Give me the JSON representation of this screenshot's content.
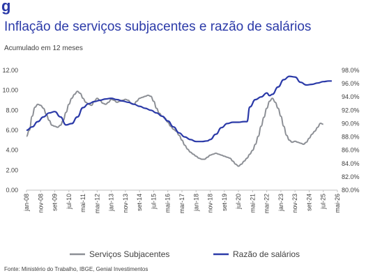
{
  "brand": {
    "logo_mark": "g",
    "accent": "#2b3aa8"
  },
  "title": "Inflação de serviços subjacentes e razão de salários",
  "subtitle": "Acumulado em 12 meses",
  "source": "Fonte: Ministério do Trabalho, IBGE, Genial Investimentos",
  "chart_data": {
    "type": "line",
    "title": "Inflação de serviços subjacentes e razão de salários",
    "subtitle": "Acumulado em 12 meses",
    "x_tick_labels": [
      "jan-08",
      "nov-08",
      "set-09",
      "jul-10",
      "mai-11",
      "mar-12",
      "jan-13",
      "nov-13",
      "set-14",
      "jul-15",
      "mai-16",
      "mar-17",
      "jan-18",
      "nov-18",
      "set-19",
      "jul-20",
      "mai-21",
      "mar-22",
      "jan-23",
      "nov-23",
      "set-24",
      "jul-25",
      "mai-26"
    ],
    "y_left": {
      "ticks": [
        "0.00",
        "2.00",
        "4.00",
        "6.00",
        "8.00",
        "10.00",
        "12.00"
      ],
      "ylim": [
        0,
        12
      ]
    },
    "y_right": {
      "ticks": [
        "80.0%",
        "82.0%",
        "84.0%",
        "86.0%",
        "88.0%",
        "90.0%",
        "92.0%",
        "94.0%",
        "96.0%",
        "98.0%"
      ],
      "ylim": [
        80,
        98
      ]
    },
    "grid": false,
    "legend_position": "bottom",
    "series": [
      {
        "name": "Serviços Subjacentes",
        "color": "#8c8f95",
        "axis": "left",
        "points": [
          [
            "2008-01",
            5.4
          ],
          [
            "2008-03",
            6.0
          ],
          [
            "2008-05",
            7.4
          ],
          [
            "2008-07",
            8.3
          ],
          [
            "2008-09",
            8.6
          ],
          [
            "2008-11",
            8.5
          ],
          [
            "2009-01",
            8.2
          ],
          [
            "2009-03",
            7.6
          ],
          [
            "2009-05",
            7.0
          ],
          [
            "2009-07",
            6.5
          ],
          [
            "2009-09",
            6.4
          ],
          [
            "2009-11",
            6.3
          ],
          [
            "2010-01",
            6.5
          ],
          [
            "2010-03",
            7.0
          ],
          [
            "2010-05",
            7.8
          ],
          [
            "2010-07",
            8.6
          ],
          [
            "2010-09",
            9.2
          ],
          [
            "2010-11",
            9.6
          ],
          [
            "2011-01",
            9.9
          ],
          [
            "2011-03",
            9.7
          ],
          [
            "2011-05",
            9.2
          ],
          [
            "2011-07",
            8.8
          ],
          [
            "2011-09",
            8.6
          ],
          [
            "2011-11",
            8.5
          ],
          [
            "2012-01",
            8.9
          ],
          [
            "2012-03",
            9.2
          ],
          [
            "2012-05",
            9.0
          ],
          [
            "2012-07",
            8.7
          ],
          [
            "2012-09",
            8.6
          ],
          [
            "2012-11",
            8.8
          ],
          [
            "2013-01",
            9.1
          ],
          [
            "2013-03",
            9.0
          ],
          [
            "2013-05",
            8.8
          ],
          [
            "2013-07",
            8.9
          ],
          [
            "2013-09",
            9.0
          ],
          [
            "2013-11",
            9.1
          ],
          [
            "2014-01",
            9.0
          ],
          [
            "2014-03",
            8.7
          ],
          [
            "2014-05",
            8.6
          ],
          [
            "2014-07",
            8.9
          ],
          [
            "2014-09",
            9.2
          ],
          [
            "2014-11",
            9.3
          ],
          [
            "2015-01",
            9.4
          ],
          [
            "2015-03",
            9.5
          ],
          [
            "2015-05",
            9.4
          ],
          [
            "2015-07",
            8.9
          ],
          [
            "2015-09",
            8.2
          ],
          [
            "2015-11",
            7.7
          ],
          [
            "2016-01",
            7.4
          ],
          [
            "2016-03",
            7.2
          ],
          [
            "2016-05",
            6.8
          ],
          [
            "2016-07",
            6.4
          ],
          [
            "2016-09",
            6.1
          ],
          [
            "2016-11",
            5.9
          ],
          [
            "2017-01",
            5.5
          ],
          [
            "2017-03",
            5.0
          ],
          [
            "2017-05",
            4.5
          ],
          [
            "2017-07",
            4.1
          ],
          [
            "2017-09",
            3.8
          ],
          [
            "2017-11",
            3.6
          ],
          [
            "2018-01",
            3.4
          ],
          [
            "2018-03",
            3.2
          ],
          [
            "2018-05",
            3.1
          ],
          [
            "2018-07",
            3.1
          ],
          [
            "2018-09",
            3.3
          ],
          [
            "2018-11",
            3.5
          ],
          [
            "2019-01",
            3.6
          ],
          [
            "2019-03",
            3.7
          ],
          [
            "2019-05",
            3.6
          ],
          [
            "2019-07",
            3.5
          ],
          [
            "2019-09",
            3.4
          ],
          [
            "2019-11",
            3.3
          ],
          [
            "2020-01",
            3.2
          ],
          [
            "2020-03",
            2.9
          ],
          [
            "2020-05",
            2.6
          ],
          [
            "2020-07",
            2.4
          ],
          [
            "2020-09",
            2.6
          ],
          [
            "2020-11",
            2.9
          ],
          [
            "2021-01",
            3.2
          ],
          [
            "2021-03",
            3.6
          ],
          [
            "2021-05",
            4.0
          ],
          [
            "2021-07",
            4.6
          ],
          [
            "2021-09",
            5.4
          ],
          [
            "2021-11",
            6.4
          ],
          [
            "2022-01",
            7.3
          ],
          [
            "2022-03",
            8.2
          ],
          [
            "2022-05",
            8.9
          ],
          [
            "2022-07",
            9.2
          ],
          [
            "2022-09",
            8.8
          ],
          [
            "2022-11",
            8.2
          ],
          [
            "2023-01",
            7.4
          ],
          [
            "2023-03",
            6.4
          ],
          [
            "2023-05",
            5.5
          ],
          [
            "2023-07",
            5.0
          ],
          [
            "2023-09",
            4.8
          ],
          [
            "2023-11",
            4.9
          ],
          [
            "2024-01",
            4.8
          ],
          [
            "2024-03",
            4.7
          ],
          [
            "2024-05",
            4.6
          ],
          [
            "2024-07",
            4.8
          ],
          [
            "2024-09",
            5.2
          ],
          [
            "2024-11",
            5.6
          ],
          [
            "2025-01",
            5.9
          ],
          [
            "2025-03",
            6.3
          ],
          [
            "2025-05",
            6.7
          ],
          [
            "2025-07",
            6.6
          ]
        ]
      },
      {
        "name": "Razão de salários",
        "color": "#2b3aa8",
        "axis": "right",
        "points": [
          [
            "2008-01",
            89.0
          ],
          [
            "2008-05",
            89.5
          ],
          [
            "2008-09",
            90.3
          ],
          [
            "2009-01",
            91.0
          ],
          [
            "2009-05",
            91.6
          ],
          [
            "2009-09",
            91.8
          ],
          [
            "2010-01",
            91.0
          ],
          [
            "2010-05",
            89.8
          ],
          [
            "2010-09",
            90.0
          ],
          [
            "2011-01",
            91.0
          ],
          [
            "2011-05",
            92.4
          ],
          [
            "2011-09",
            93.0
          ],
          [
            "2012-01",
            93.3
          ],
          [
            "2012-05",
            93.5
          ],
          [
            "2012-09",
            93.7
          ],
          [
            "2013-01",
            93.8
          ],
          [
            "2013-05",
            93.6
          ],
          [
            "2013-09",
            93.4
          ],
          [
            "2014-01",
            93.2
          ],
          [
            "2014-05",
            92.9
          ],
          [
            "2014-09",
            92.6
          ],
          [
            "2015-01",
            92.3
          ],
          [
            "2015-05",
            92.0
          ],
          [
            "2015-09",
            91.6
          ],
          [
            "2016-01",
            91.1
          ],
          [
            "2016-05",
            90.4
          ],
          [
            "2016-09",
            89.5
          ],
          [
            "2017-01",
            88.6
          ],
          [
            "2017-05",
            88.0
          ],
          [
            "2017-09",
            87.6
          ],
          [
            "2018-01",
            87.3
          ],
          [
            "2018-05",
            87.3
          ],
          [
            "2018-09",
            87.4
          ],
          [
            "2018-11",
            87.6
          ],
          [
            "2019-03",
            88.4
          ],
          [
            "2019-07",
            89.4
          ],
          [
            "2019-11",
            90.0
          ],
          [
            "2020-03",
            90.2
          ],
          [
            "2020-07",
            90.2
          ],
          [
            "2020-11",
            90.3
          ],
          [
            "2021-01",
            90.3
          ],
          [
            "2021-03",
            92.5
          ],
          [
            "2021-07",
            93.6
          ],
          [
            "2021-11",
            94.0
          ],
          [
            "2022-03",
            94.6
          ],
          [
            "2022-05",
            94.2
          ],
          [
            "2022-07",
            94.4
          ],
          [
            "2022-11",
            95.5
          ],
          [
            "2023-03",
            96.6
          ],
          [
            "2023-07",
            97.1
          ],
          [
            "2023-11",
            97.0
          ],
          [
            "2024-03",
            96.2
          ],
          [
            "2024-07",
            95.8
          ],
          [
            "2024-11",
            95.9
          ],
          [
            "2025-03",
            96.1
          ],
          [
            "2025-07",
            96.3
          ],
          [
            "2025-11",
            96.4
          ],
          [
            "2026-01",
            96.4
          ]
        ]
      }
    ]
  }
}
